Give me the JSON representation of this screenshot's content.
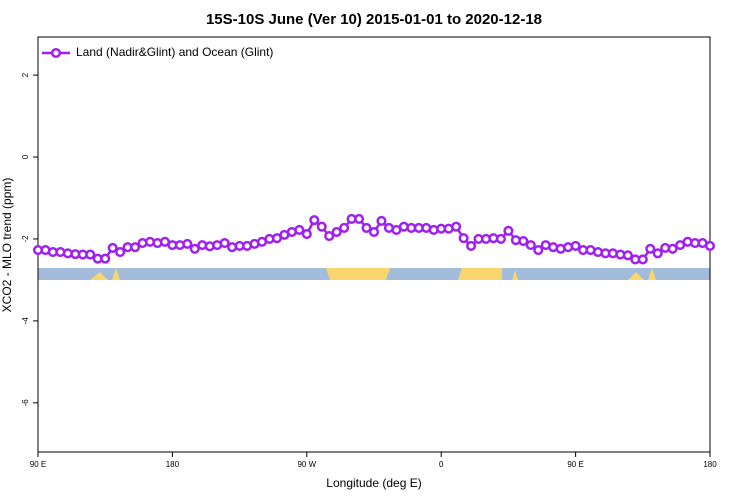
{
  "chart_data": {
    "type": "line",
    "title": "15S-10S June (Ver 10)   2015-01-01 to 2020-12-18",
    "x_label": "Longitude (deg E)",
    "y_label": "XCO2 - MLO trend (ppm)",
    "xlim": [
      90,
      540
    ],
    "ylim": [
      -7.2,
      2.93
    ],
    "xticks": [
      {
        "value": 90,
        "label": "90 E"
      },
      180,
      {
        "value": 270,
        "label": "90 W"
      },
      {
        "value": 360,
        "label": "0"
      },
      {
        "value": 450,
        "label": "90 E"
      },
      {
        "value": 540,
        "label": "180"
      }
    ],
    "yticks": [
      2,
      0,
      -2,
      -4,
      -6
    ],
    "legend": "top-left",
    "x": [
      90,
      95,
      100,
      105,
      110,
      115,
      120,
      125,
      130,
      135,
      140,
      145,
      150,
      155,
      160,
      165,
      170,
      175,
      180,
      185,
      190,
      195,
      200,
      205,
      210,
      215,
      220,
      225,
      230,
      235,
      240,
      245,
      250,
      255,
      260,
      265,
      270,
      275,
      280,
      285,
      290,
      295,
      300,
      305,
      310,
      315,
      320,
      325,
      330,
      335,
      340,
      345,
      350,
      355,
      360,
      365,
      370,
      375,
      380,
      385,
      390,
      395,
      400,
      405,
      410,
      415,
      420,
      425,
      430,
      435,
      440,
      445,
      450,
      455,
      460,
      465,
      470,
      475,
      480,
      485,
      490,
      495,
      500,
      505,
      510,
      515,
      520,
      525,
      530,
      535,
      540
    ],
    "series": [
      {
        "name": "Land (Nadir&Glint) and Ocean (Glint)",
        "color": "#a020f0",
        "values": [
          -2.27,
          -2.27,
          -2.32,
          -2.32,
          -2.35,
          -2.37,
          -2.38,
          -2.38,
          -2.48,
          -2.48,
          -2.22,
          -2.32,
          -2.2,
          -2.2,
          -2.1,
          -2.07,
          -2.1,
          -2.07,
          -2.15,
          -2.15,
          -2.12,
          -2.24,
          -2.15,
          -2.18,
          -2.15,
          -2.1,
          -2.2,
          -2.17,
          -2.17,
          -2.12,
          -2.07,
          -2.0,
          -1.98,
          -1.9,
          -1.83,
          -1.78,
          -1.88,
          -1.54,
          -1.7,
          -1.93,
          -1.83,
          -1.73,
          -1.51,
          -1.51,
          -1.73,
          -1.83,
          -1.56,
          -1.73,
          -1.78,
          -1.7,
          -1.73,
          -1.73,
          -1.73,
          -1.78,
          -1.75,
          -1.75,
          -1.7,
          -1.98,
          -2.17,
          -2.0,
          -2.0,
          -1.98,
          -2.0,
          -1.8,
          -2.03,
          -2.05,
          -2.15,
          -2.27,
          -2.15,
          -2.2,
          -2.24,
          -2.2,
          -2.17,
          -2.27,
          -2.27,
          -2.32,
          -2.35,
          -2.35,
          -2.38,
          -2.4,
          -2.5,
          -2.5,
          -2.24,
          -2.35,
          -2.22,
          -2.24,
          -2.15,
          -2.07,
          -2.1,
          -2.1,
          -2.17
        ]
      }
    ]
  }
}
